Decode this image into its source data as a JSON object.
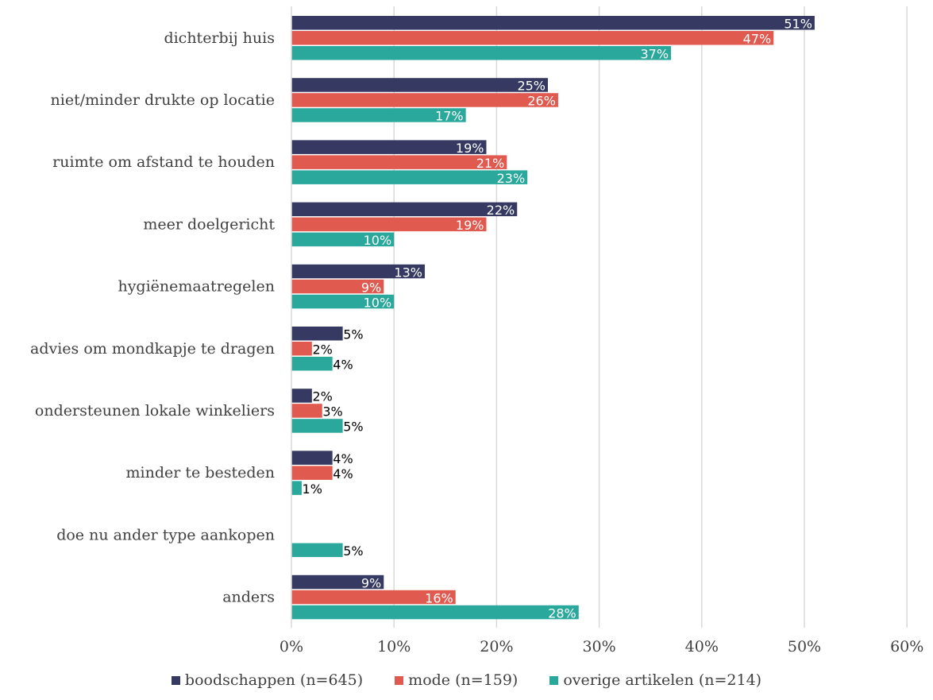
{
  "chart_data": {
    "type": "bar",
    "orientation": "horizontal",
    "categories": [
      "dichterbij huis",
      "niet/minder drukte op locatie",
      "ruimte om afstand te houden",
      "meer doelgericht",
      "hygiënemaatregelen",
      "advies om mondkapje te dragen",
      "ondersteunen lokale winkeliers",
      "minder te besteden",
      "doe nu ander type aankopen",
      "anders"
    ],
    "series": [
      {
        "name": "boodschappen (n=645)",
        "color": "#363a62",
        "values": [
          51,
          25,
          19,
          22,
          13,
          5,
          2,
          4,
          null,
          9
        ],
        "labels": [
          "51%",
          "25%",
          "19%",
          "22%",
          "13%",
          "5%",
          "2%",
          "4%",
          "",
          "9%"
        ]
      },
      {
        "name": "mode (n=159)",
        "color": "#e05a50",
        "values": [
          47,
          26,
          21,
          19,
          9,
          2,
          3,
          4,
          null,
          16
        ],
        "labels": [
          "47%",
          "26%",
          "21%",
          "19%",
          "9%",
          "2%",
          "3%",
          "4%",
          "",
          "16%"
        ]
      },
      {
        "name": "overige artikelen (n=214)",
        "color": "#2aa89b",
        "values": [
          37,
          17,
          23,
          10,
          10,
          4,
          5,
          1,
          5,
          28
        ],
        "labels": [
          "37%",
          "17%",
          "23%",
          "10%",
          "10%",
          "4%",
          "5%",
          "1%",
          "5%",
          "28%"
        ]
      }
    ],
    "xlim": [
      0,
      60
    ],
    "xticks": [
      "0%",
      "10%",
      "20%",
      "30%",
      "40%",
      "50%",
      "60%"
    ],
    "grid": true,
    "legend_position": "bottom",
    "title": "",
    "xlabel": "",
    "ylabel": ""
  }
}
